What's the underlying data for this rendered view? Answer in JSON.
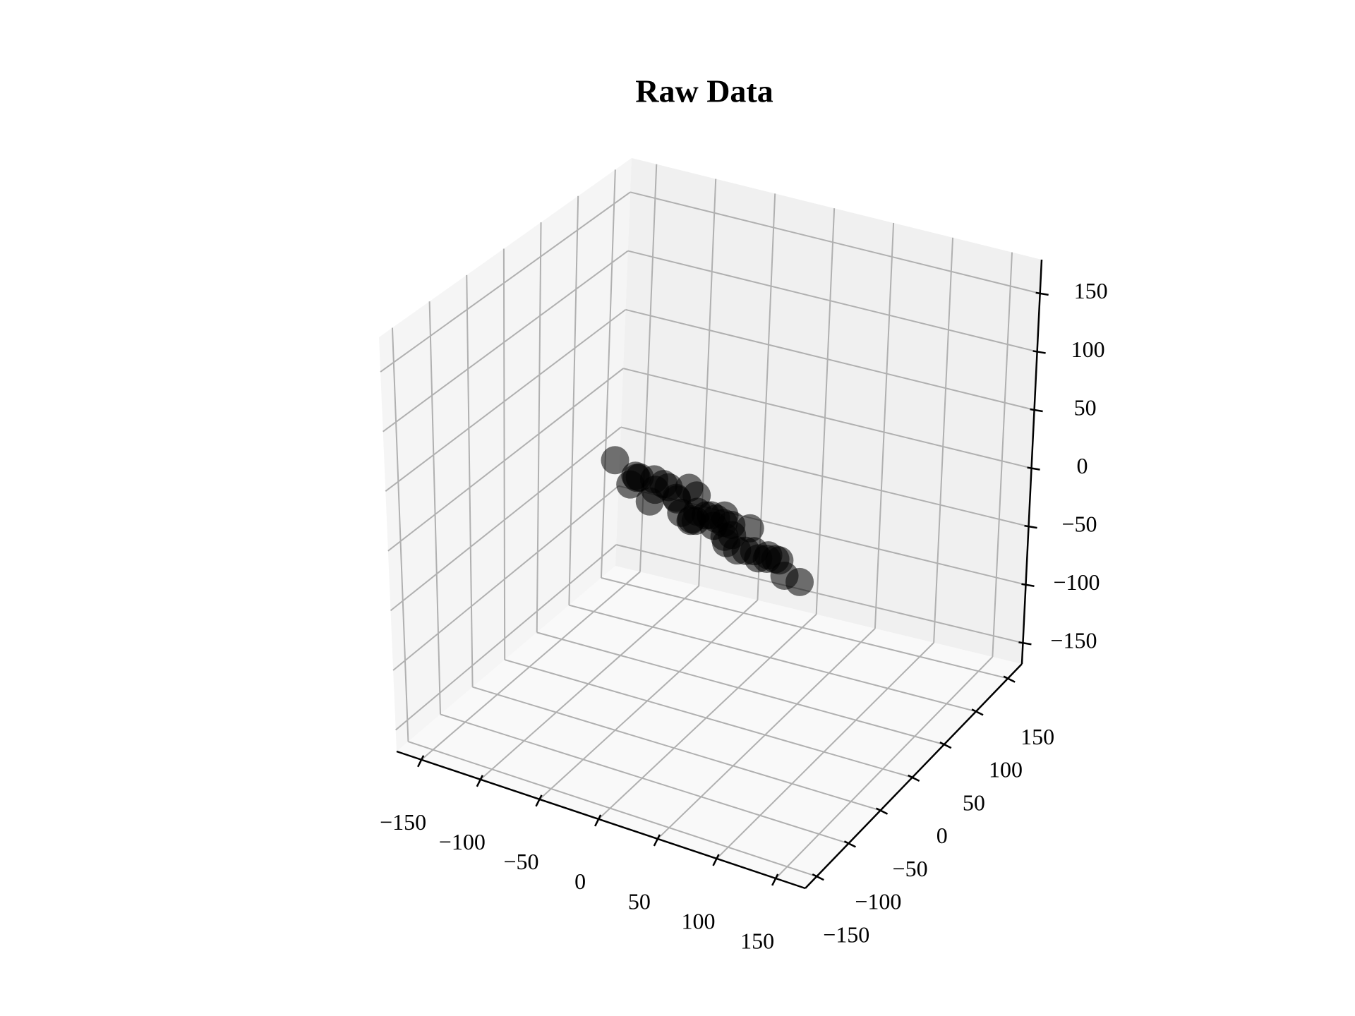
{
  "chart_data": {
    "type": "scatter3d",
    "title": "Raw Data",
    "color": "#000000",
    "x": [
      -60,
      -55,
      -50,
      -45,
      -40,
      -35,
      -30,
      -25,
      -20,
      -15,
      -10,
      -5,
      0,
      5,
      10,
      15,
      20,
      25,
      30,
      35,
      40,
      45,
      50,
      55,
      60,
      -48,
      -20,
      10,
      40,
      65,
      -65,
      0,
      0,
      -30,
      30,
      -75,
      75,
      20,
      -40,
      5
    ],
    "y": [
      5,
      -10,
      10,
      0,
      -15,
      15,
      -5,
      5,
      -10,
      10,
      0,
      -15,
      5,
      15,
      -5,
      10,
      -10,
      0,
      10,
      -5,
      5,
      -10,
      0,
      10,
      -5,
      -20,
      20,
      -20,
      20,
      0,
      0,
      -25,
      25,
      25,
      -25,
      -5,
      5,
      0,
      5,
      0
    ],
    "z": [
      15,
      25,
      5,
      20,
      10,
      0,
      20,
      -5,
      15,
      10,
      -5,
      5,
      0,
      -10,
      5,
      -15,
      -5,
      -20,
      -5,
      -15,
      -25,
      -10,
      -20,
      -25,
      -15,
      30,
      -10,
      15,
      -30,
      -30,
      10,
      10,
      -10,
      5,
      0,
      30,
      -35,
      0,
      15,
      -5
    ],
    "xlim": [
      -171,
      175
    ],
    "ylim": [
      -168,
      172
    ],
    "zlim": [
      -168,
      179
    ],
    "xticks": [
      {
        "value": -150,
        "label": "−150"
      },
      {
        "value": -100,
        "label": "−100"
      },
      {
        "value": -50,
        "label": "−50"
      },
      0,
      50,
      100,
      150
    ],
    "yticks": [
      {
        "value": -150,
        "label": "−150"
      },
      {
        "value": -100,
        "label": "−100"
      },
      {
        "value": -50,
        "label": "−50"
      },
      0,
      50,
      100,
      150
    ],
    "zticks": [
      {
        "value": -150,
        "label": "−150"
      },
      {
        "value": -100,
        "label": "−100"
      },
      {
        "value": -50,
        "label": "−50"
      },
      0,
      50,
      100,
      150
    ],
    "grid": true
  }
}
